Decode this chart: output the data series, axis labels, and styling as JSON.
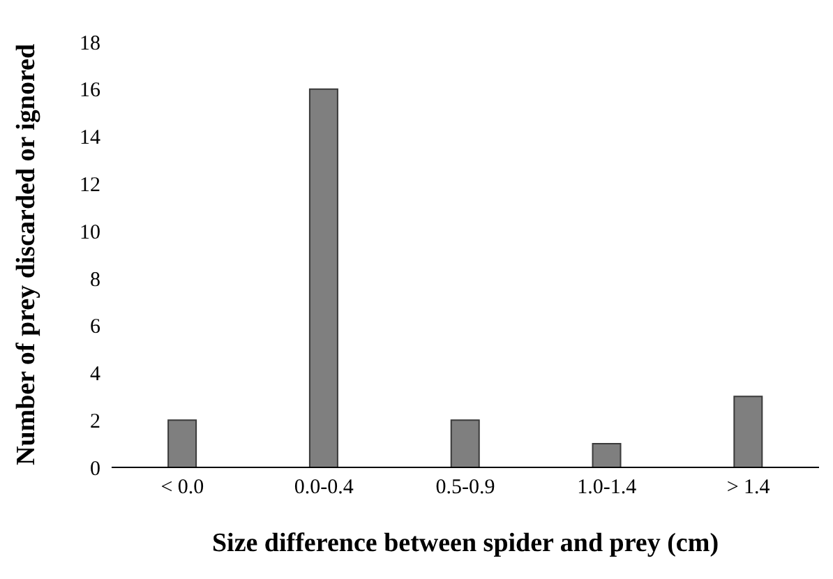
{
  "chart_data": {
    "type": "bar",
    "xlabel": "Size difference between spider and prey (cm)",
    "ylabel": "Number of prey discarded or ignored",
    "categories": [
      "< 0.0",
      "0.0-0.4",
      "0.5-0.9",
      "1.0-1.4",
      "> 1.4"
    ],
    "values": [
      2,
      16,
      2,
      1,
      3
    ],
    "color": "#7f7f7f",
    "ylim": [
      0,
      18
    ],
    "yticks": [
      0,
      2,
      4,
      6,
      8,
      10,
      12,
      14,
      16,
      18
    ],
    "grid": false,
    "legend": false
  }
}
